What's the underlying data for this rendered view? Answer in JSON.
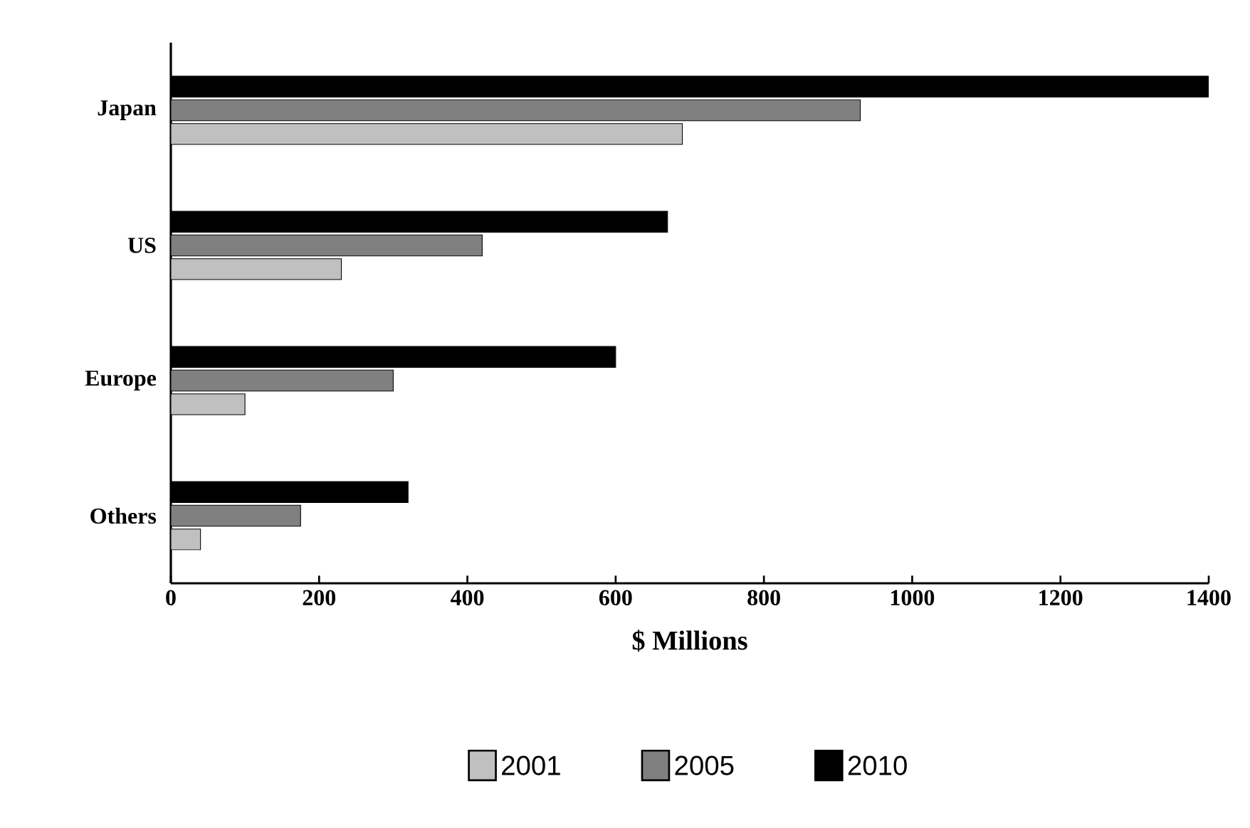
{
  "chart_data": {
    "type": "bar",
    "orientation": "horizontal",
    "xlabel": "$ Millions",
    "categories": [
      "Japan",
      "US",
      "Europe",
      "Others"
    ],
    "series": [
      {
        "name": "2001",
        "color": "#c0c0c0",
        "values": [
          690,
          230,
          100,
          40
        ]
      },
      {
        "name": "2005",
        "color": "#808080",
        "values": [
          930,
          420,
          300,
          175
        ]
      },
      {
        "name": "2010",
        "color": "#000000",
        "values": [
          1400,
          670,
          600,
          320
        ]
      }
    ],
    "xlim": [
      0,
      1400
    ],
    "xticks": [
      0,
      200,
      400,
      600,
      800,
      1000,
      1200,
      1400
    ],
    "legend": "bottom"
  }
}
